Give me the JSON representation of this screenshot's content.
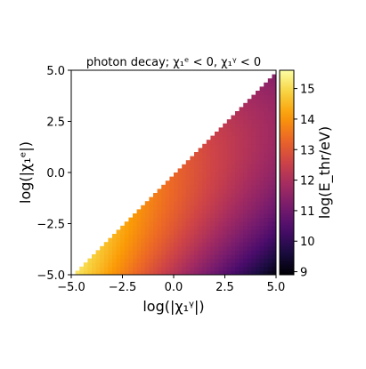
{
  "chart_data": {
    "type": "heatmap",
    "title": "photon decay; χ₁ᵉ < 0,  χ₁ᵞ < 0",
    "xlabel": "log(|χ₁ᵞ|)",
    "ylabel": "log(|χ₁ᵉ|)",
    "colorbar_label": "log(E_thr/eV)",
    "xlim": [
      -5.0,
      5.0
    ],
    "ylim": [
      -5.0,
      5.0
    ],
    "clim": [
      8.9,
      15.6
    ],
    "x_ticks": [
      "−5.0",
      "−2.5",
      "0.0",
      "2.5",
      "5.0"
    ],
    "x_tick_values": [
      -5.0,
      -2.5,
      0.0,
      2.5,
      5.0
    ],
    "y_ticks": [
      "−5.0",
      "−2.5",
      "0.0",
      "2.5",
      "5.0"
    ],
    "y_tick_values": [
      -5.0,
      -2.5,
      0.0,
      2.5,
      5.0
    ],
    "cb_ticks": [
      "9",
      "10",
      "11",
      "12",
      "13",
      "14",
      "15"
    ],
    "cb_tick_values": [
      9,
      10,
      11,
      12,
      13,
      14,
      15
    ],
    "grid_resolution": 50,
    "region": "filled where log(|χ₁ᵉ|) < log(|χ₁ᵞ|) (lower-right triangle); blank elsewhere",
    "value_at_diagonal_low_end": 15.3,
    "value_at_diagonal_high_end": 11.3,
    "value_at_bottom_right_corner": 9.0,
    "colormap": "inferno",
    "colormap_stops": [
      "#000004",
      "#1b0c41",
      "#4a0c6b",
      "#781c6d",
      "#a52c60",
      "#cf4446",
      "#ed6925",
      "#fb9b06",
      "#f7d13d",
      "#fcffa4"
    ]
  }
}
